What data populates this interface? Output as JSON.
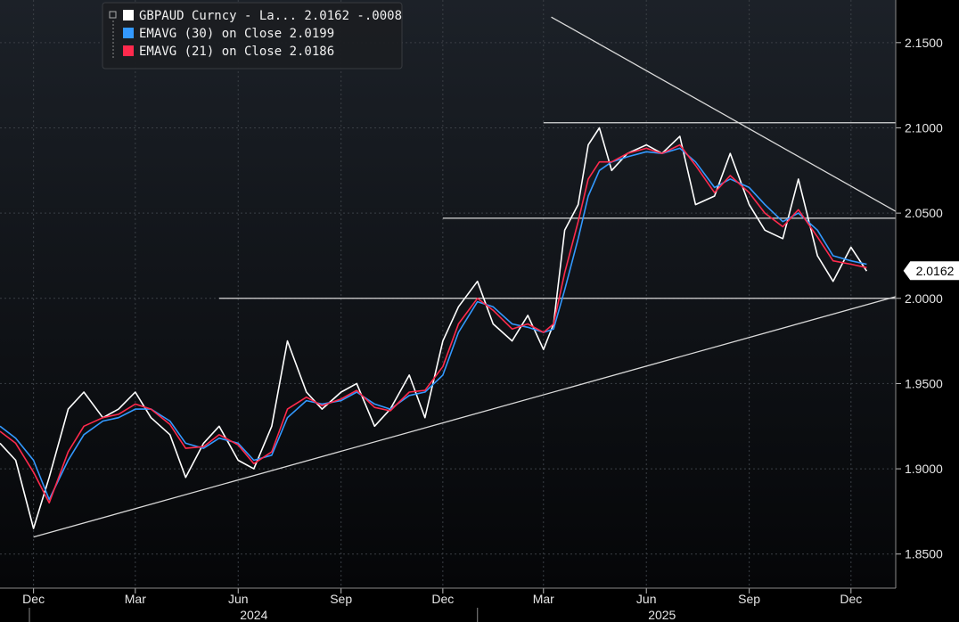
{
  "chart_data": {
    "type": "line",
    "instrument": "GBPAUD Curncy",
    "ylim": [
      1.83,
      2.175
    ],
    "y_ticks": [
      "1.8500",
      "1.9000",
      "1.9500",
      "2.0000",
      "2.0500",
      "2.1000",
      "2.1500"
    ],
    "y_tick_values": [
      1.85,
      1.9,
      1.95,
      2.0,
      2.05,
      2.1,
      2.15
    ],
    "x_tick_labels": [
      "Dec",
      "Mar",
      "Jun",
      "Sep",
      "Dec",
      "Mar",
      "Jun",
      "Sep",
      "Dec"
    ],
    "x_tick_dates": [
      "2023-12-01",
      "2024-03-01",
      "2024-06-01",
      "2024-09-01",
      "2024-12-01",
      "2025-03-01",
      "2025-06-01",
      "2025-09-01",
      "2025-12-01"
    ],
    "year_labels": [
      "2024",
      "2025"
    ],
    "year_dates": [
      "2024-06-15",
      "2025-06-15"
    ],
    "xlim": [
      "2023-11-01",
      "2026-01-10"
    ],
    "last_value": "2.0162",
    "legend": [
      {
        "label": "GBPAUD Curncy - La... 2.0162  -.0008",
        "color": "#ffffff"
      },
      {
        "label": "EMAVG (30)  on Close 2.0199",
        "color": "#3399ff"
      },
      {
        "label": "EMAVG (21)  on Close 2.0186",
        "color": "#ff2a4d"
      }
    ],
    "series": [
      {
        "name": "GBPAUD Curncy",
        "color": "#ffffff",
        "x": [
          "2023-11-01",
          "2023-11-15",
          "2023-12-01",
          "2023-12-15",
          "2024-01-01",
          "2024-01-15",
          "2024-02-01",
          "2024-02-15",
          "2024-03-01",
          "2024-03-15",
          "2024-04-01",
          "2024-04-15",
          "2024-05-01",
          "2024-05-15",
          "2024-06-01",
          "2024-06-15",
          "2024-07-01",
          "2024-07-15",
          "2024-08-01",
          "2024-08-15",
          "2024-09-01",
          "2024-09-15",
          "2024-10-01",
          "2024-10-15",
          "2024-11-01",
          "2024-11-15",
          "2024-12-01",
          "2024-12-15",
          "2025-01-01",
          "2025-01-15",
          "2025-02-01",
          "2025-02-15",
          "2025-03-01",
          "2025-03-10",
          "2025-03-20",
          "2025-04-01",
          "2025-04-10",
          "2025-04-20",
          "2025-05-01",
          "2025-05-15",
          "2025-06-01",
          "2025-06-15",
          "2025-07-01",
          "2025-07-15",
          "2025-08-01",
          "2025-08-15",
          "2025-09-01",
          "2025-09-15",
          "2025-10-01",
          "2025-10-15",
          "2025-11-01",
          "2025-11-15",
          "2025-12-01",
          "2025-12-15"
        ],
        "y": [
          1.915,
          1.905,
          1.865,
          1.895,
          1.935,
          1.945,
          1.93,
          1.935,
          1.945,
          1.93,
          1.92,
          1.895,
          1.915,
          1.925,
          1.905,
          1.9,
          1.925,
          1.975,
          1.945,
          1.935,
          1.945,
          1.95,
          1.925,
          1.935,
          1.955,
          1.93,
          1.975,
          1.995,
          2.01,
          1.985,
          1.975,
          1.99,
          1.97,
          1.985,
          2.04,
          2.055,
          2.09,
          2.1,
          2.075,
          2.085,
          2.09,
          2.085,
          2.095,
          2.055,
          2.06,
          2.085,
          2.055,
          2.04,
          2.035,
          2.07,
          2.025,
          2.01,
          2.03,
          2.016
        ]
      },
      {
        "name": "EMAVG (30)",
        "color": "#3399ff",
        "x": [
          "2023-11-01",
          "2023-11-15",
          "2023-12-01",
          "2023-12-15",
          "2024-01-01",
          "2024-01-15",
          "2024-02-01",
          "2024-02-15",
          "2024-03-01",
          "2024-03-15",
          "2024-04-01",
          "2024-04-15",
          "2024-05-01",
          "2024-05-15",
          "2024-06-01",
          "2024-06-15",
          "2024-07-01",
          "2024-07-15",
          "2024-08-01",
          "2024-08-15",
          "2024-09-01",
          "2024-09-15",
          "2024-10-01",
          "2024-10-15",
          "2024-11-01",
          "2024-11-15",
          "2024-12-01",
          "2024-12-15",
          "2025-01-01",
          "2025-01-15",
          "2025-02-01",
          "2025-02-15",
          "2025-03-01",
          "2025-03-10",
          "2025-03-20",
          "2025-04-01",
          "2025-04-10",
          "2025-04-20",
          "2025-05-01",
          "2025-05-15",
          "2025-06-01",
          "2025-06-15",
          "2025-07-01",
          "2025-07-15",
          "2025-08-01",
          "2025-08-15",
          "2025-09-01",
          "2025-09-15",
          "2025-10-01",
          "2025-10-15",
          "2025-11-01",
          "2025-11-15",
          "2025-12-01",
          "2025-12-15"
        ],
        "y": [
          1.925,
          1.918,
          1.905,
          1.882,
          1.905,
          1.92,
          1.928,
          1.93,
          1.935,
          1.935,
          1.928,
          1.915,
          1.912,
          1.918,
          1.915,
          1.905,
          1.908,
          1.93,
          1.94,
          1.938,
          1.94,
          1.945,
          1.938,
          1.935,
          1.943,
          1.945,
          1.955,
          1.98,
          1.998,
          1.995,
          1.985,
          1.983,
          1.98,
          1.982,
          2.005,
          2.035,
          2.06,
          2.075,
          2.08,
          2.083,
          2.086,
          2.085,
          2.088,
          2.08,
          2.065,
          2.07,
          2.065,
          2.055,
          2.045,
          2.05,
          2.04,
          2.025,
          2.022,
          2.02
        ]
      },
      {
        "name": "EMAVG (21)",
        "color": "#ff2a4d",
        "x": [
          "2023-11-01",
          "2023-11-15",
          "2023-12-01",
          "2023-12-15",
          "2024-01-01",
          "2024-01-15",
          "2024-02-01",
          "2024-02-15",
          "2024-03-01",
          "2024-03-15",
          "2024-04-01",
          "2024-04-15",
          "2024-05-01",
          "2024-05-15",
          "2024-06-01",
          "2024-06-15",
          "2024-07-01",
          "2024-07-15",
          "2024-08-01",
          "2024-08-15",
          "2024-09-01",
          "2024-09-15",
          "2024-10-01",
          "2024-10-15",
          "2024-11-01",
          "2024-11-15",
          "2024-12-01",
          "2024-12-15",
          "2025-01-01",
          "2025-01-15",
          "2025-02-01",
          "2025-02-15",
          "2025-03-01",
          "2025-03-10",
          "2025-03-20",
          "2025-04-01",
          "2025-04-10",
          "2025-04-20",
          "2025-05-01",
          "2025-05-15",
          "2025-06-01",
          "2025-06-15",
          "2025-07-01",
          "2025-07-15",
          "2025-08-01",
          "2025-08-15",
          "2025-09-01",
          "2025-09-15",
          "2025-10-01",
          "2025-10-15",
          "2025-11-01",
          "2025-11-15",
          "2025-12-01",
          "2025-12-15"
        ],
        "y": [
          1.922,
          1.915,
          1.898,
          1.88,
          1.91,
          1.925,
          1.93,
          1.932,
          1.938,
          1.935,
          1.926,
          1.912,
          1.913,
          1.92,
          1.914,
          1.903,
          1.91,
          1.935,
          1.942,
          1.937,
          1.941,
          1.946,
          1.936,
          1.934,
          1.945,
          1.946,
          1.96,
          1.985,
          2.0,
          1.993,
          1.982,
          1.985,
          1.98,
          1.985,
          2.015,
          2.045,
          2.07,
          2.08,
          2.08,
          2.085,
          2.088,
          2.085,
          2.09,
          2.078,
          2.062,
          2.072,
          2.062,
          2.05,
          2.042,
          2.052,
          2.036,
          2.022,
          2.02,
          2.018
        ]
      }
    ],
    "trendlines": [
      {
        "x1": "2023-12-01",
        "y1": 1.86,
        "x2": "2026-01-10",
        "y2": 2.001
      },
      {
        "x1": "2025-03-08",
        "y1": 2.165,
        "x2": "2026-01-10",
        "y2": 2.051
      },
      {
        "x1": "2025-03-01",
        "y1": 2.103,
        "x2": "2026-01-10",
        "y2": 2.103
      },
      {
        "x1": "2024-12-01",
        "y1": 2.047,
        "x2": "2026-01-10",
        "y2": 2.047
      },
      {
        "x1": "2024-05-15",
        "y1": 2.0,
        "x2": "2026-01-10",
        "y2": 2.0
      }
    ]
  }
}
